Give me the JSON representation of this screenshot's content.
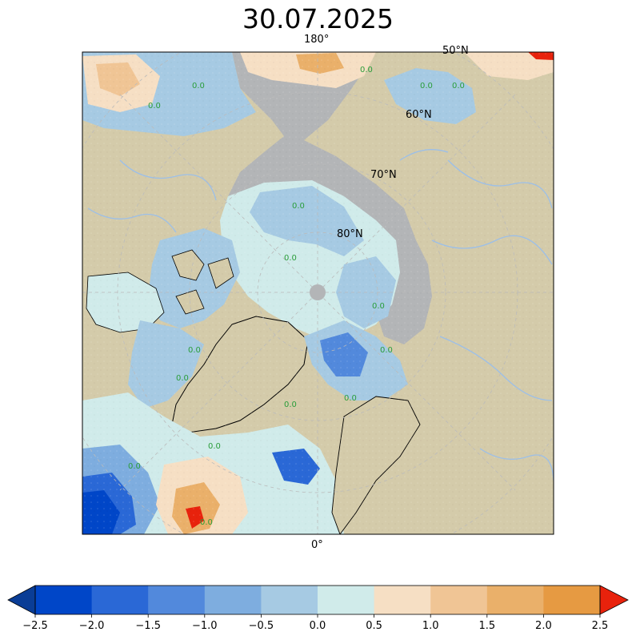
{
  "title": "30.07.2025",
  "map": {
    "projection": "north-polar-stereographic",
    "meridian_labels": {
      "top": "180°",
      "bottom": "0°"
    },
    "latitude_labels": [
      "50°N",
      "60°N",
      "70°N",
      "80°N"
    ],
    "contour_label": "0.0",
    "colors": {
      "land": "#d4cbaa",
      "no_data": "#b3b5b7",
      "rivers": "#9cbfe8",
      "coast": "#000000",
      "graticule": "#bbbbbb",
      "zero_contour": "#2a9d3a"
    }
  },
  "colorbar": {
    "ticks": [
      "−2.5",
      "−2.0",
      "−1.5",
      "−1.0",
      "−0.5",
      "0.0",
      "0.5",
      "1.0",
      "1.5",
      "2.0",
      "2.5"
    ],
    "range": [
      -2.5,
      2.5
    ],
    "extend": "both",
    "under_color": "#0a3d96",
    "over_color": "#e8220c",
    "bins": [
      {
        "from": -2.5,
        "to": -2.0,
        "color": "#0046c8"
      },
      {
        "from": -2.0,
        "to": -1.5,
        "color": "#2a68d6"
      },
      {
        "from": -1.5,
        "to": -1.0,
        "color": "#5289dc"
      },
      {
        "from": -1.0,
        "to": -0.5,
        "color": "#7eaddf"
      },
      {
        "from": -0.5,
        "to": 0.0,
        "color": "#a6cae3"
      },
      {
        "from": 0.0,
        "to": 0.5,
        "color": "#d0ebea"
      },
      {
        "from": 0.5,
        "to": 1.0,
        "color": "#f6dfc4"
      },
      {
        "from": 1.0,
        "to": 1.5,
        "color": "#f0c595"
      },
      {
        "from": 1.5,
        "to": 2.0,
        "color": "#eab06a"
      },
      {
        "from": 2.0,
        "to": 2.5,
        "color": "#e69a42"
      }
    ]
  }
}
